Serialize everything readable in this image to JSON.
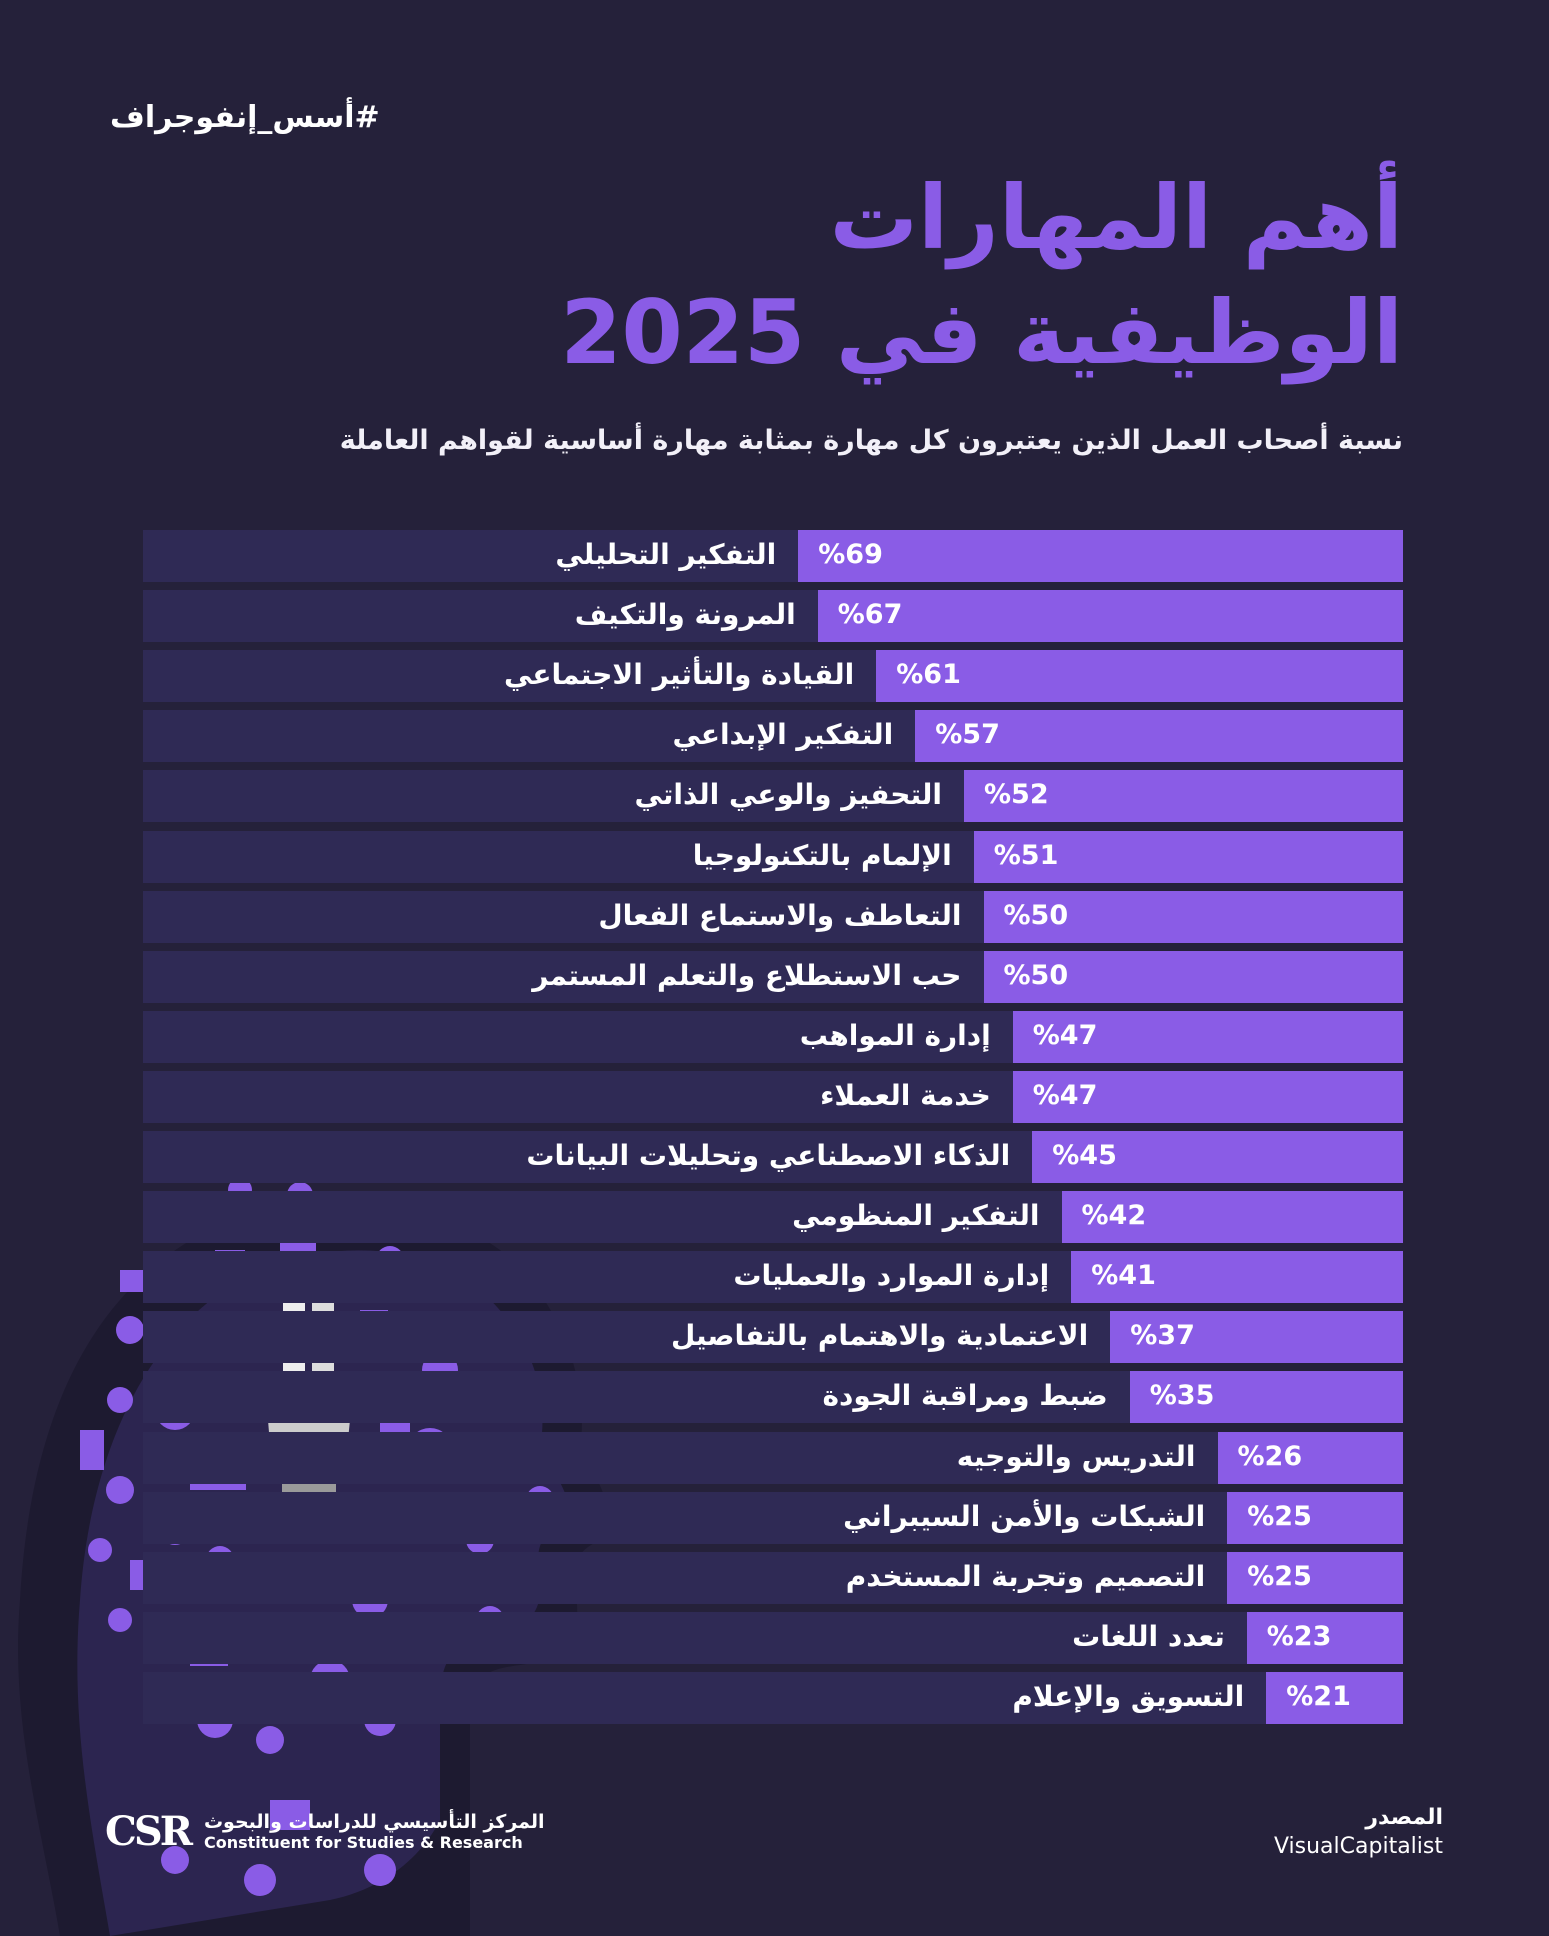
{
  "hashtag": "#أسس_إنفوجراف",
  "title_line1": "أهم المهارات",
  "title_line2": "الوظيفية في 2025",
  "subtitle": "نسبة أصحاب العمل الذين يعتبرون كل مهارة بمثابة مهارة أساسية لقواهم العاملة",
  "colors": {
    "background": "#25213a",
    "bar": "#8a5ce6",
    "track": "#2f2a55",
    "accent": "#8a5ce6"
  },
  "chart_data": {
    "type": "bar",
    "orientation": "horizontal",
    "unit": "%",
    "categories": [
      "التفكير التحليلي",
      "المرونة والتكيف",
      "القيادة والتأثير الاجتماعي",
      "التفكير الإبداعي",
      "التحفيز والوعي الذاتي",
      "الإلمام بالتكنولوجيا",
      "التعاطف والاستماع الفعال",
      "حب الاستطلاع والتعلم المستمر",
      "إدارة المواهب",
      "خدمة العملاء",
      "الذكاء الاصطناعي وتحليلات البيانات",
      "التفكير المنظومي",
      "إدارة الموارد والعمليات",
      "الاعتمادية والاهتمام بالتفاصيل",
      "ضبط ومراقبة الجودة",
      "التدريس والتوجيه",
      "الشبكات والأمن السيبراني",
      "التصميم وتجربة المستخدم",
      "تعدد اللغات",
      "التسويق والإعلام"
    ],
    "values": [
      69,
      67,
      61,
      57,
      52,
      51,
      50,
      50,
      47,
      47,
      45,
      42,
      41,
      37,
      35,
      26,
      25,
      25,
      23,
      21
    ],
    "value_labels": [
      "%69",
      "%67",
      "%61",
      "%57",
      "%52",
      "%51",
      "%50",
      "%50",
      "%47",
      "%47",
      "%45",
      "%42",
      "%41",
      "%37",
      "%35",
      "%26",
      "%25",
      "%25",
      "%23",
      "%21"
    ]
  },
  "footer": {
    "logo_text": "CSR",
    "org_ar": "المركز التأسيسي للدراسات والبحوث",
    "org_en": "Constituent for Studies & Research",
    "source_label": "المصدر",
    "source_value": "VisualCapitalist"
  }
}
